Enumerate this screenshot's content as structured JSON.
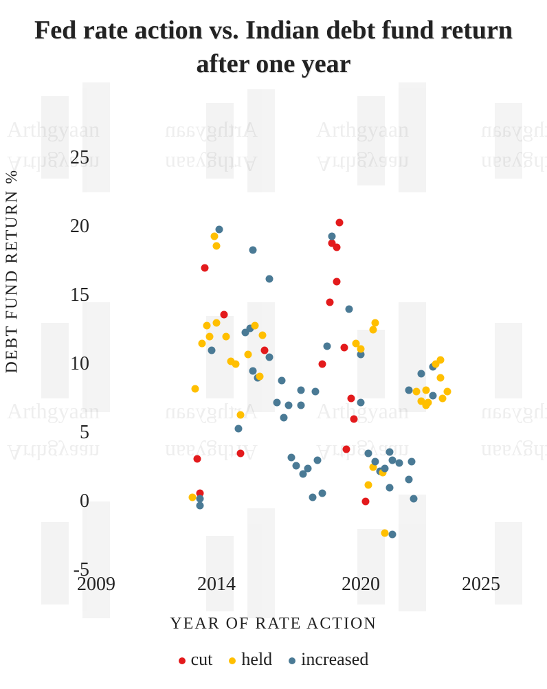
{
  "title": "Fed rate action vs. Indian debt fund return after one year",
  "x_label": "YEAR OF RATE ACTION",
  "y_label": "DEBT FUND RETURN %",
  "chart": {
    "type": "scatter",
    "background_color": "#ffffff",
    "title_fontsize": 38,
    "label_fontsize": 24,
    "tick_fontsize": 28,
    "point_radius": 5.5,
    "xlim": [
      2009,
      2025
    ],
    "ylim": [
      -5,
      25
    ],
    "x_ticks": [
      2009,
      2014,
      2020,
      2025
    ],
    "y_ticks": [
      -5,
      0,
      5,
      10,
      15,
      20,
      25
    ],
    "series_colors": {
      "cut": "#e31a1c",
      "held": "#ffbf00",
      "increased": "#4a7a95"
    },
    "legend_order": [
      "cut",
      "held",
      "increased"
    ],
    "legend_labels": {
      "cut": "cut",
      "held": "held",
      "increased": "increased"
    },
    "points": [
      {
        "x": 2013.0,
        "y": 0.3,
        "s": "held"
      },
      {
        "x": 2013.1,
        "y": 8.2,
        "s": "held"
      },
      {
        "x": 2013.2,
        "y": 3.1,
        "s": "cut"
      },
      {
        "x": 2013.3,
        "y": -0.3,
        "s": "increased"
      },
      {
        "x": 2013.3,
        "y": 0.6,
        "s": "cut"
      },
      {
        "x": 2013.3,
        "y": 0.2,
        "s": "increased"
      },
      {
        "x": 2013.4,
        "y": 11.5,
        "s": "held"
      },
      {
        "x": 2013.5,
        "y": 17.0,
        "s": "cut"
      },
      {
        "x": 2013.6,
        "y": 12.8,
        "s": "held"
      },
      {
        "x": 2013.7,
        "y": 12.0,
        "s": "held"
      },
      {
        "x": 2013.8,
        "y": 11.0,
        "s": "increased"
      },
      {
        "x": 2013.9,
        "y": 19.3,
        "s": "held"
      },
      {
        "x": 2014.0,
        "y": 13.0,
        "s": "held"
      },
      {
        "x": 2014.0,
        "y": 18.6,
        "s": "held"
      },
      {
        "x": 2014.1,
        "y": 19.8,
        "s": "increased"
      },
      {
        "x": 2014.3,
        "y": 13.6,
        "s": "cut"
      },
      {
        "x": 2014.4,
        "y": 12.0,
        "s": "held"
      },
      {
        "x": 2014.6,
        "y": 10.2,
        "s": "held"
      },
      {
        "x": 2014.8,
        "y": 10.0,
        "s": "held"
      },
      {
        "x": 2014.9,
        "y": 5.3,
        "s": "increased"
      },
      {
        "x": 2015.0,
        "y": 3.5,
        "s": "cut"
      },
      {
        "x": 2015.0,
        "y": 6.3,
        "s": "held"
      },
      {
        "x": 2015.2,
        "y": 12.3,
        "s": "increased"
      },
      {
        "x": 2015.3,
        "y": 10.7,
        "s": "held"
      },
      {
        "x": 2015.4,
        "y": 12.6,
        "s": "increased"
      },
      {
        "x": 2015.5,
        "y": 9.5,
        "s": "increased"
      },
      {
        "x": 2015.5,
        "y": 18.3,
        "s": "increased"
      },
      {
        "x": 2015.6,
        "y": 12.8,
        "s": "held"
      },
      {
        "x": 2015.7,
        "y": 9.0,
        "s": "increased"
      },
      {
        "x": 2015.8,
        "y": 9.1,
        "s": "held"
      },
      {
        "x": 2015.9,
        "y": 12.1,
        "s": "held"
      },
      {
        "x": 2016.0,
        "y": 11.0,
        "s": "cut"
      },
      {
        "x": 2016.2,
        "y": 10.5,
        "s": "increased"
      },
      {
        "x": 2016.2,
        "y": 16.2,
        "s": "increased"
      },
      {
        "x": 2016.5,
        "y": 7.2,
        "s": "increased"
      },
      {
        "x": 2016.7,
        "y": 8.8,
        "s": "increased"
      },
      {
        "x": 2016.8,
        "y": 6.1,
        "s": "increased"
      },
      {
        "x": 2017.0,
        "y": 7.0,
        "s": "increased"
      },
      {
        "x": 2017.1,
        "y": 3.2,
        "s": "increased"
      },
      {
        "x": 2017.3,
        "y": 2.6,
        "s": "increased"
      },
      {
        "x": 2017.5,
        "y": 7.0,
        "s": "increased"
      },
      {
        "x": 2017.5,
        "y": 8.1,
        "s": "increased"
      },
      {
        "x": 2017.6,
        "y": 2.0,
        "s": "increased"
      },
      {
        "x": 2017.8,
        "y": 2.4,
        "s": "increased"
      },
      {
        "x": 2018.0,
        "y": 0.3,
        "s": "increased"
      },
      {
        "x": 2018.1,
        "y": 8.0,
        "s": "increased"
      },
      {
        "x": 2018.2,
        "y": 3.0,
        "s": "increased"
      },
      {
        "x": 2018.4,
        "y": 0.6,
        "s": "increased"
      },
      {
        "x": 2018.4,
        "y": 10.0,
        "s": "cut"
      },
      {
        "x": 2018.6,
        "y": 11.3,
        "s": "increased"
      },
      {
        "x": 2018.7,
        "y": 14.5,
        "s": "cut"
      },
      {
        "x": 2018.8,
        "y": 18.8,
        "s": "cut"
      },
      {
        "x": 2018.8,
        "y": 19.3,
        "s": "increased"
      },
      {
        "x": 2019.0,
        "y": 16.0,
        "s": "cut"
      },
      {
        "x": 2019.0,
        "y": 18.5,
        "s": "cut"
      },
      {
        "x": 2019.1,
        "y": 20.3,
        "s": "cut"
      },
      {
        "x": 2019.3,
        "y": 11.2,
        "s": "cut"
      },
      {
        "x": 2019.4,
        "y": 3.8,
        "s": "cut"
      },
      {
        "x": 2019.5,
        "y": 14.0,
        "s": "increased"
      },
      {
        "x": 2019.6,
        "y": 7.5,
        "s": "cut"
      },
      {
        "x": 2019.7,
        "y": 6.0,
        "s": "cut"
      },
      {
        "x": 2019.8,
        "y": 11.5,
        "s": "held"
      },
      {
        "x": 2020.0,
        "y": 10.7,
        "s": "increased"
      },
      {
        "x": 2020.0,
        "y": 11.1,
        "s": "held"
      },
      {
        "x": 2020.0,
        "y": 7.2,
        "s": "increased"
      },
      {
        "x": 2020.2,
        "y": 0.0,
        "s": "cut"
      },
      {
        "x": 2020.3,
        "y": 3.5,
        "s": "increased"
      },
      {
        "x": 2020.3,
        "y": 1.2,
        "s": "held"
      },
      {
        "x": 2020.5,
        "y": 12.5,
        "s": "held"
      },
      {
        "x": 2020.5,
        "y": 2.5,
        "s": "held"
      },
      {
        "x": 2020.6,
        "y": 2.9,
        "s": "increased"
      },
      {
        "x": 2020.6,
        "y": 13.0,
        "s": "held"
      },
      {
        "x": 2020.8,
        "y": 2.2,
        "s": "increased"
      },
      {
        "x": 2020.9,
        "y": 2.1,
        "s": "held"
      },
      {
        "x": 2021.0,
        "y": -2.3,
        "s": "held"
      },
      {
        "x": 2021.0,
        "y": 2.4,
        "s": "increased"
      },
      {
        "x": 2021.2,
        "y": 1.0,
        "s": "increased"
      },
      {
        "x": 2021.2,
        "y": 3.6,
        "s": "increased"
      },
      {
        "x": 2021.3,
        "y": -2.4,
        "s": "increased"
      },
      {
        "x": 2021.3,
        "y": 3.0,
        "s": "increased"
      },
      {
        "x": 2021.6,
        "y": 2.8,
        "s": "increased"
      },
      {
        "x": 2022.0,
        "y": 1.6,
        "s": "increased"
      },
      {
        "x": 2022.0,
        "y": 8.1,
        "s": "increased"
      },
      {
        "x": 2022.1,
        "y": 2.9,
        "s": "increased"
      },
      {
        "x": 2022.2,
        "y": 0.2,
        "s": "increased"
      },
      {
        "x": 2022.3,
        "y": 8.0,
        "s": "held"
      },
      {
        "x": 2022.5,
        "y": 7.3,
        "s": "held"
      },
      {
        "x": 2022.5,
        "y": 9.3,
        "s": "increased"
      },
      {
        "x": 2022.7,
        "y": 7.0,
        "s": "held"
      },
      {
        "x": 2022.7,
        "y": 8.1,
        "s": "held"
      },
      {
        "x": 2022.8,
        "y": 7.2,
        "s": "held"
      },
      {
        "x": 2023.0,
        "y": 9.8,
        "s": "increased"
      },
      {
        "x": 2023.0,
        "y": 7.7,
        "s": "increased"
      },
      {
        "x": 2023.1,
        "y": 10.0,
        "s": "held"
      },
      {
        "x": 2023.3,
        "y": 10.3,
        "s": "held"
      },
      {
        "x": 2023.3,
        "y": 9.0,
        "s": "held"
      },
      {
        "x": 2023.4,
        "y": 7.5,
        "s": "held"
      },
      {
        "x": 2023.6,
        "y": 8.0,
        "s": "held"
      }
    ]
  }
}
